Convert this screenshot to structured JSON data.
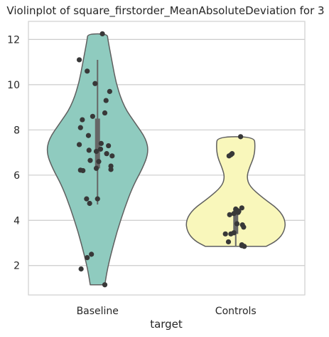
{
  "chart_data": {
    "type": "violin",
    "title": "Violinplot of square_firstorder_MeanAbsoluteDeviation for 3",
    "xlabel": "target",
    "ylabel": "",
    "categories": [
      "Baseline",
      "Controls"
    ],
    "ylim": [
      0.7,
      12.8
    ],
    "yticks": [
      2,
      4,
      6,
      8,
      10,
      12
    ],
    "grid": true,
    "colors": {
      "Baseline": "#8fcbbf",
      "Controls": "#f9f7bb",
      "points": "#383838",
      "outline": "#5f5f5f",
      "grid": "#cccccc",
      "spine": "#cfcfcf"
    },
    "series": [
      {
        "name": "Baseline",
        "median": 7.0,
        "q1": 6.3,
        "q3": 8.5,
        "whisker_low": 4.7,
        "whisker_high": 11.1,
        "violin_profile": [
          [
            1.15,
            0.12
          ],
          [
            1.8,
            0.16
          ],
          [
            2.5,
            0.22
          ],
          [
            3.5,
            0.32
          ],
          [
            4.5,
            0.44
          ],
          [
            5.5,
            0.58
          ],
          [
            6.3,
            0.74
          ],
          [
            7.0,
            0.84
          ],
          [
            7.6,
            0.8
          ],
          [
            8.3,
            0.62
          ],
          [
            9.0,
            0.44
          ],
          [
            10.0,
            0.31
          ],
          [
            11.0,
            0.24
          ],
          [
            12.0,
            0.17
          ],
          [
            12.25,
            0.16
          ]
        ],
        "points": [
          [
            12.25,
            0.08
          ],
          [
            11.1,
            -0.3
          ],
          [
            10.6,
            -0.17
          ],
          [
            10.05,
            -0.04
          ],
          [
            9.7,
            0.2
          ],
          [
            9.3,
            0.14
          ],
          [
            8.75,
            0.12
          ],
          [
            8.6,
            -0.08
          ],
          [
            8.45,
            -0.25
          ],
          [
            8.1,
            -0.28
          ],
          [
            7.75,
            -0.15
          ],
          [
            7.4,
            0.06
          ],
          [
            7.35,
            -0.3
          ],
          [
            7.3,
            0.18
          ],
          [
            7.15,
            0.05
          ],
          [
            7.1,
            -0.14
          ],
          [
            7.05,
            -0.02
          ],
          [
            6.95,
            0.15
          ],
          [
            6.85,
            0.24
          ],
          [
            6.65,
            -0.12
          ],
          [
            6.6,
            0.02
          ],
          [
            6.4,
            0.22
          ],
          [
            6.3,
            -0.02
          ],
          [
            6.25,
            0.22
          ],
          [
            6.22,
            -0.28
          ],
          [
            6.2,
            -0.24
          ],
          [
            4.95,
            -0.18
          ],
          [
            4.95,
            0.0
          ],
          [
            4.75,
            -0.13
          ],
          [
            2.5,
            -0.1
          ],
          [
            2.35,
            -0.17
          ],
          [
            1.85,
            -0.27
          ],
          [
            1.15,
            0.12
          ]
        ]
      },
      {
        "name": "Controls",
        "median": 4.4,
        "q1": 3.4,
        "q3": 4.5,
        "whisker_low": 2.85,
        "whisker_high": 4.6,
        "violin_profile": [
          [
            2.85,
            0.5
          ],
          [
            3.1,
            0.68
          ],
          [
            3.5,
            0.8
          ],
          [
            4.0,
            0.82
          ],
          [
            4.5,
            0.7
          ],
          [
            5.0,
            0.44
          ],
          [
            5.5,
            0.23
          ],
          [
            5.9,
            0.18
          ],
          [
            6.3,
            0.22
          ],
          [
            6.8,
            0.3
          ],
          [
            7.3,
            0.32
          ],
          [
            7.7,
            0.3
          ]
        ],
        "points": [
          [
            7.7,
            0.08
          ],
          [
            6.95,
            -0.06
          ],
          [
            6.9,
            -0.08
          ],
          [
            6.85,
            -0.11
          ],
          [
            4.55,
            0.1
          ],
          [
            4.5,
            0.0
          ],
          [
            4.45,
            0.02
          ],
          [
            4.4,
            0.05
          ],
          [
            4.35,
            0.04
          ],
          [
            4.3,
            -0.03
          ],
          [
            4.25,
            -0.1
          ],
          [
            3.85,
            0.02
          ],
          [
            3.8,
            0.11
          ],
          [
            3.7,
            0.13
          ],
          [
            3.45,
            -0.03
          ],
          [
            3.4,
            -0.17
          ],
          [
            3.4,
            -0.08
          ],
          [
            3.05,
            -0.12
          ],
          [
            2.92,
            0.1
          ],
          [
            2.88,
            0.1
          ],
          [
            2.85,
            0.14
          ]
        ]
      }
    ]
  }
}
